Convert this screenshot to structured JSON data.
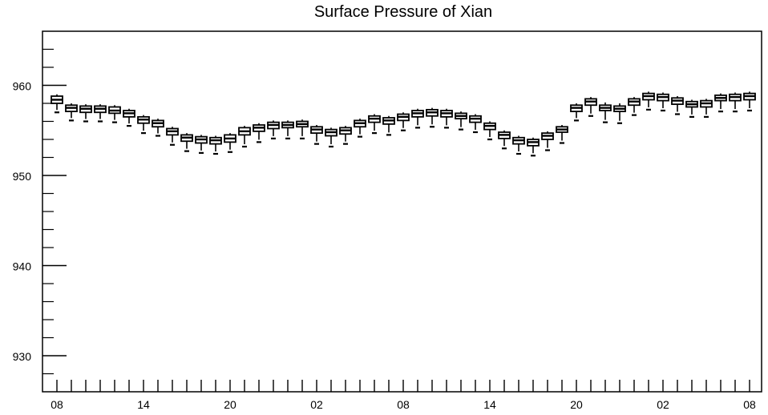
{
  "chart_data": {
    "type": "boxplot",
    "title": "Surface Pressure of Xian",
    "xlabel": "",
    "ylabel": "",
    "ylim": [
      926,
      966
    ],
    "y_ticks": [
      "930",
      "940",
      "950",
      "960"
    ],
    "x_tick_labels": [
      "08",
      "14",
      "20",
      "02",
      "08",
      "14",
      "20",
      "02",
      "08"
    ],
    "x_tick_positions": [
      0,
      6,
      12,
      18,
      24,
      30,
      36,
      42,
      48
    ],
    "grid": false,
    "series": [
      {
        "boxes": [
          {
            "x": 0,
            "min": 957.0,
            "q1": 958.0,
            "median": 958.4,
            "q3": 958.8,
            "max": 959.0
          },
          {
            "x": 1,
            "min": 956.1,
            "q1": 957.1,
            "median": 957.5,
            "q3": 957.8,
            "max": 958.0
          },
          {
            "x": 2,
            "min": 956.0,
            "q1": 957.0,
            "median": 957.4,
            "q3": 957.7,
            "max": 957.9
          },
          {
            "x": 3,
            "min": 956.0,
            "q1": 957.0,
            "median": 957.4,
            "q3": 957.7,
            "max": 957.9
          },
          {
            "x": 4,
            "min": 955.9,
            "q1": 956.9,
            "median": 957.2,
            "q3": 957.6,
            "max": 957.8
          },
          {
            "x": 5,
            "min": 955.5,
            "q1": 956.5,
            "median": 956.9,
            "q3": 957.2,
            "max": 957.4
          },
          {
            "x": 6,
            "min": 954.7,
            "q1": 955.8,
            "median": 956.2,
            "q3": 956.5,
            "max": 956.7
          },
          {
            "x": 7,
            "min": 954.4,
            "q1": 955.4,
            "median": 955.8,
            "q3": 956.1,
            "max": 956.3
          },
          {
            "x": 8,
            "min": 953.4,
            "q1": 954.5,
            "median": 954.9,
            "q3": 955.2,
            "max": 955.4
          },
          {
            "x": 9,
            "min": 952.7,
            "q1": 953.8,
            "median": 954.2,
            "q3": 954.5,
            "max": 954.7
          },
          {
            "x": 10,
            "min": 952.5,
            "q1": 953.6,
            "median": 954.0,
            "q3": 954.3,
            "max": 954.5
          },
          {
            "x": 11,
            "min": 952.4,
            "q1": 953.5,
            "median": 953.9,
            "q3": 954.2,
            "max": 954.4
          },
          {
            "x": 12,
            "min": 952.6,
            "q1": 953.7,
            "median": 954.1,
            "q3": 954.5,
            "max": 954.7
          },
          {
            "x": 13,
            "min": 953.2,
            "q1": 954.5,
            "median": 954.9,
            "q3": 955.3,
            "max": 955.5
          },
          {
            "x": 14,
            "min": 953.7,
            "q1": 954.9,
            "median": 955.3,
            "q3": 955.6,
            "max": 955.8
          },
          {
            "x": 15,
            "min": 954.1,
            "q1": 955.2,
            "median": 955.6,
            "q3": 955.9,
            "max": 956.1
          },
          {
            "x": 16,
            "min": 954.1,
            "q1": 955.3,
            "median": 955.6,
            "q3": 955.9,
            "max": 956.1
          },
          {
            "x": 17,
            "min": 954.1,
            "q1": 955.4,
            "median": 955.7,
            "q3": 956.0,
            "max": 956.2
          },
          {
            "x": 18,
            "min": 953.5,
            "q1": 954.7,
            "median": 955.1,
            "q3": 955.4,
            "max": 955.6
          },
          {
            "x": 19,
            "min": 953.2,
            "q1": 954.4,
            "median": 954.8,
            "q3": 955.1,
            "max": 955.3
          },
          {
            "x": 20,
            "min": 953.5,
            "q1": 954.6,
            "median": 955.0,
            "q3": 955.3,
            "max": 955.5
          },
          {
            "x": 21,
            "min": 954.3,
            "q1": 955.4,
            "median": 955.8,
            "q3": 956.1,
            "max": 956.3
          },
          {
            "x": 22,
            "min": 954.7,
            "q1": 955.9,
            "median": 956.3,
            "q3": 956.6,
            "max": 956.8
          },
          {
            "x": 23,
            "min": 954.5,
            "q1": 955.7,
            "median": 956.1,
            "q3": 956.4,
            "max": 956.6
          },
          {
            "x": 24,
            "min": 955.0,
            "q1": 956.1,
            "median": 956.5,
            "q3": 956.8,
            "max": 957.0
          },
          {
            "x": 25,
            "min": 955.3,
            "q1": 956.5,
            "median": 956.9,
            "q3": 957.2,
            "max": 957.4
          },
          {
            "x": 26,
            "min": 955.4,
            "q1": 956.6,
            "median": 957.0,
            "q3": 957.3,
            "max": 957.5
          },
          {
            "x": 27,
            "min": 955.3,
            "q1": 956.5,
            "median": 956.9,
            "q3": 957.2,
            "max": 957.4
          },
          {
            "x": 28,
            "min": 955.1,
            "q1": 956.3,
            "median": 956.6,
            "q3": 956.9,
            "max": 957.1
          },
          {
            "x": 29,
            "min": 954.8,
            "q1": 955.9,
            "median": 956.3,
            "q3": 956.6,
            "max": 956.8
          },
          {
            "x": 30,
            "min": 954.0,
            "q1": 955.1,
            "median": 955.5,
            "q3": 955.8,
            "max": 956.0
          },
          {
            "x": 31,
            "min": 953.0,
            "q1": 954.1,
            "median": 954.5,
            "q3": 954.8,
            "max": 955.0
          },
          {
            "x": 32,
            "min": 952.4,
            "q1": 953.5,
            "median": 953.9,
            "q3": 954.2,
            "max": 954.4
          },
          {
            "x": 33,
            "min": 952.2,
            "q1": 953.3,
            "median": 953.7,
            "q3": 954.0,
            "max": 954.2
          },
          {
            "x": 34,
            "min": 952.8,
            "q1": 954.0,
            "median": 954.4,
            "q3": 954.7,
            "max": 954.9
          },
          {
            "x": 35,
            "min": 953.6,
            "q1": 954.8,
            "median": 955.1,
            "q3": 955.4,
            "max": 955.6
          },
          {
            "x": 36,
            "min": 956.1,
            "q1": 957.1,
            "median": 957.5,
            "q3": 957.8,
            "max": 958.0
          },
          {
            "x": 37,
            "min": 956.6,
            "q1": 957.8,
            "median": 958.2,
            "q3": 958.5,
            "max": 958.7
          },
          {
            "x": 38,
            "min": 955.9,
            "q1": 957.2,
            "median": 957.5,
            "q3": 957.8,
            "max": 958.1
          },
          {
            "x": 39,
            "min": 955.8,
            "q1": 957.1,
            "median": 957.4,
            "q3": 957.7,
            "max": 958.0
          },
          {
            "x": 40,
            "min": 956.7,
            "q1": 957.8,
            "median": 958.2,
            "q3": 958.5,
            "max": 958.7
          },
          {
            "x": 41,
            "min": 957.3,
            "q1": 958.4,
            "median": 958.8,
            "q3": 959.1,
            "max": 959.3
          },
          {
            "x": 42,
            "min": 957.2,
            "q1": 958.3,
            "median": 958.7,
            "q3": 959.0,
            "max": 959.2
          },
          {
            "x": 43,
            "min": 956.8,
            "q1": 957.9,
            "median": 958.3,
            "q3": 958.6,
            "max": 958.8
          },
          {
            "x": 44,
            "min": 956.5,
            "q1": 957.6,
            "median": 957.9,
            "q3": 958.2,
            "max": 958.4
          },
          {
            "x": 45,
            "min": 956.5,
            "q1": 957.6,
            "median": 958.0,
            "q3": 958.3,
            "max": 958.5
          },
          {
            "x": 46,
            "min": 957.1,
            "q1": 958.3,
            "median": 958.6,
            "q3": 958.9,
            "max": 959.1
          },
          {
            "x": 47,
            "min": 957.1,
            "q1": 958.3,
            "median": 958.7,
            "q3": 959.0,
            "max": 959.2
          },
          {
            "x": 48,
            "min": 957.2,
            "q1": 958.4,
            "median": 958.8,
            "q3": 959.1,
            "max": 959.3
          }
        ]
      }
    ]
  }
}
